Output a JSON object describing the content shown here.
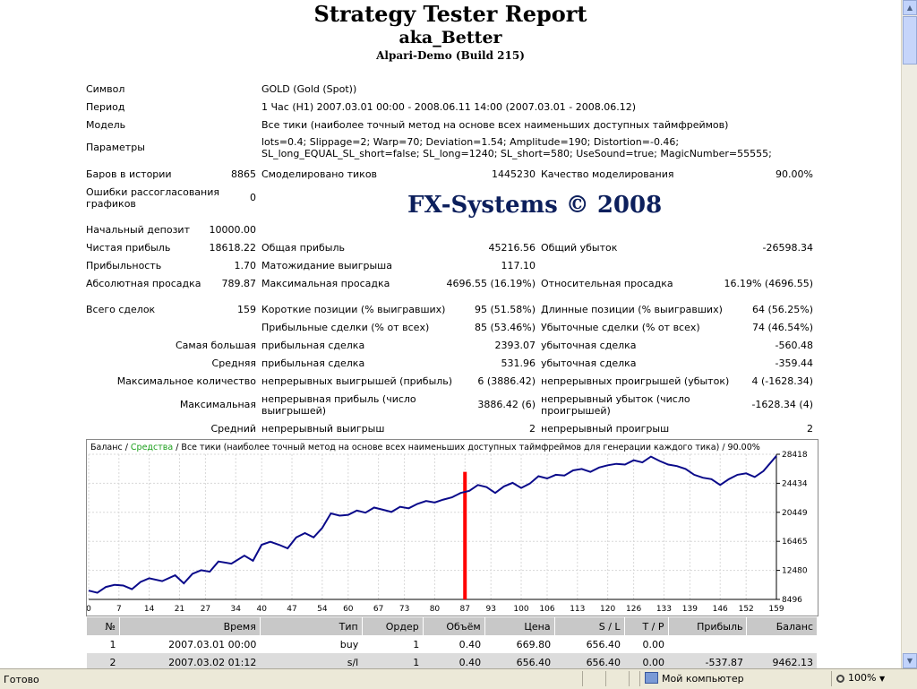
{
  "report": {
    "title": "Strategy Tester Report",
    "expert": "aka_Better",
    "server": "Alpari-Demo (Build 215)"
  },
  "info": {
    "symbol_label": "Символ",
    "symbol_value": "GOLD (Gold (Spot))",
    "period_label": "Период",
    "period_value": "1 Час (H1) 2007.03.01 00:00 - 2008.06.11 14:00 (2007.03.01 - 2008.06.12)",
    "model_label": "Модель",
    "model_value": "Все тики (наиболее точный метод на основе всех наименьших доступных таймфреймов)",
    "params_label": "Параметры",
    "params_value": "lots=0.4; Slippage=2; Warp=70; Deviation=1.54; Amplitude=190; Distortion=-0.46; SL_long_EQUAL_SL_short=false; SL_long=1240; SL_short=580; UseSound=true; MagicNumber=55555;"
  },
  "stats": {
    "bars_label": "Баров в истории",
    "bars_value": "8865",
    "ticks_label": "Смоделировано тиков",
    "ticks_value": "1445230",
    "quality_label": "Качество моделирования",
    "quality_value": "90.00%",
    "mismatch_label": "Ошибки рассогласования графиков",
    "mismatch_value": "0",
    "brand": "FX-Systems © 2008",
    "deposit_label": "Начальный депозит",
    "deposit_value": "10000.00",
    "net_label": "Чистая прибыль",
    "net_value": "18618.22",
    "gross_profit_label": "Общая прибыль",
    "gross_profit_value": "45216.56",
    "gross_loss_label": "Общий убыток",
    "gross_loss_value": "-26598.34",
    "pf_label": "Прибыльность",
    "pf_value": "1.70",
    "payoff_label": "Матожидание выигрыша",
    "payoff_value": "117.10",
    "abs_dd_label": "Абсолютная просадка",
    "abs_dd_value": "789.87",
    "max_dd_label": "Максимальная просадка",
    "max_dd_value": "4696.55 (16.19%)",
    "rel_dd_label": "Относительная просадка",
    "rel_dd_value": "16.19% (4696.55)",
    "trades_label": "Всего сделок",
    "trades_value": "159",
    "short_label": "Короткие позиции (% выигравших)",
    "short_value": "95 (51.58%)",
    "long_label": "Длинные позиции (% выигравших)",
    "long_value": "64 (56.25%)",
    "profit_trades_label": "Прибыльные сделки (% от всех)",
    "profit_trades_value": "85 (53.46%)",
    "loss_trades_label": "Убыточные сделки (% от всех)",
    "loss_trades_value": "74 (46.54%)",
    "largest_label": "Самая большая",
    "largest_profit_label": "прибыльная сделка",
    "largest_profit_value": "2393.07",
    "largest_loss_label": "убыточная сделка",
    "largest_loss_value": "-560.48",
    "average_label": "Средняя",
    "average_profit_label": "прибыльная сделка",
    "average_profit_value": "531.96",
    "average_loss_label": "убыточная сделка",
    "average_loss_value": "-359.44",
    "max_count_label": "Максимальное количество",
    "max_consec_wins_label": "непрерывных выигрышей (прибыль)",
    "max_consec_wins_value": "6 (3886.42)",
    "max_consec_losses_label": "непрерывных проигрышей (убыток)",
    "max_consec_losses_value": "4 (-1628.34)",
    "maximal_label": "Максимальная",
    "maximal_profit_label": "непрерывная прибыль (число выигрышей)",
    "maximal_profit_value": "3886.42 (6)",
    "maximal_loss_label": "непрерывный убыток (число проигрышей)",
    "maximal_loss_value": "-1628.34 (4)",
    "avg_consec_label": "Средний",
    "avg_consec_wins_label": "непрерывный выигрыш",
    "avg_consec_wins_value": "2",
    "avg_consec_losses_label": "непрерывный проигрыш",
    "avg_consec_losses_value": "2"
  },
  "chart_data": {
    "type": "line",
    "caption_balance": "Баланс",
    "caption_sep": " / ",
    "caption_equity": "Средства",
    "caption_rest": " / Все тики (наиболее точный метод на основе всех наименьших доступных таймфреймов для генерации каждого тика) / 90.00%",
    "x_ticks": [
      "0",
      "7",
      "14",
      "21",
      "27",
      "34",
      "40",
      "47",
      "54",
      "60",
      "67",
      "73",
      "80",
      "87",
      "93",
      "100",
      "106",
      "113",
      "120",
      "126",
      "133",
      "139",
      "146",
      "152",
      "159"
    ],
    "y_ticks": [
      "8496",
      "12480",
      "16465",
      "20449",
      "24434",
      "28418"
    ],
    "xlim": [
      0,
      159
    ],
    "ylim": [
      8496,
      28418
    ],
    "series": [
      {
        "name": "Баланс",
        "color": "#0a0a8a",
        "x": [
          0,
          2,
          4,
          6,
          8,
          10,
          12,
          14,
          17,
          20,
          22,
          24,
          26,
          28,
          30,
          33,
          36,
          38,
          40,
          42,
          44,
          46,
          48,
          50,
          52,
          54,
          56,
          58,
          60,
          62,
          64,
          66,
          68,
          70,
          72,
          74,
          76,
          78,
          80,
          82,
          84,
          86,
          88,
          90,
          92,
          94,
          96,
          98,
          100,
          102,
          104,
          106,
          108,
          110,
          112,
          114,
          116,
          118,
          120,
          122,
          124,
          126,
          128,
          130,
          132,
          134,
          136,
          138,
          140,
          142,
          144,
          146,
          148,
          150,
          152,
          154,
          156,
          159
        ],
        "values": [
          9700,
          9400,
          10200,
          10500,
          10400,
          9900,
          10900,
          11400,
          11000,
          11800,
          10700,
          12000,
          12500,
          12300,
          13700,
          13400,
          14500,
          13800,
          16000,
          16400,
          16000,
          15500,
          17000,
          17600,
          17000,
          18300,
          20300,
          20000,
          20100,
          20700,
          20400,
          21100,
          20800,
          20500,
          21200,
          21000,
          21600,
          22000,
          21800,
          22200,
          22500,
          23100,
          23400,
          24200,
          23900,
          23100,
          24000,
          24500,
          23800,
          24400,
          25400,
          25100,
          25600,
          25500,
          26200,
          26400,
          26000,
          26600,
          26900,
          27100,
          27000,
          27600,
          27300,
          28100,
          27500,
          27000,
          26800,
          26400,
          25600,
          25200,
          25000,
          24200,
          25000,
          25600,
          25800,
          25300,
          26100,
          28200
        ]
      }
    ],
    "marker": {
      "x": 87,
      "color": "#ff0000"
    }
  },
  "trades_table": {
    "headers": [
      "№",
      "Время",
      "Тип",
      "Ордер",
      "Объём",
      "Цена",
      "S / L",
      "T / P",
      "Прибыль",
      "Баланс"
    ],
    "rows": [
      [
        "1",
        "2007.03.01 00:00",
        "buy",
        "1",
        "0.40",
        "669.80",
        "656.40",
        "0.00",
        "",
        ""
      ],
      [
        "2",
        "2007.03.02 01:12",
        "s/l",
        "1",
        "0.40",
        "656.40",
        "656.40",
        "0.00",
        "-537.87",
        "9462.13"
      ]
    ]
  },
  "status": {
    "text": "Готово",
    "zone": "Мой компьютер",
    "zoom": "100%"
  }
}
